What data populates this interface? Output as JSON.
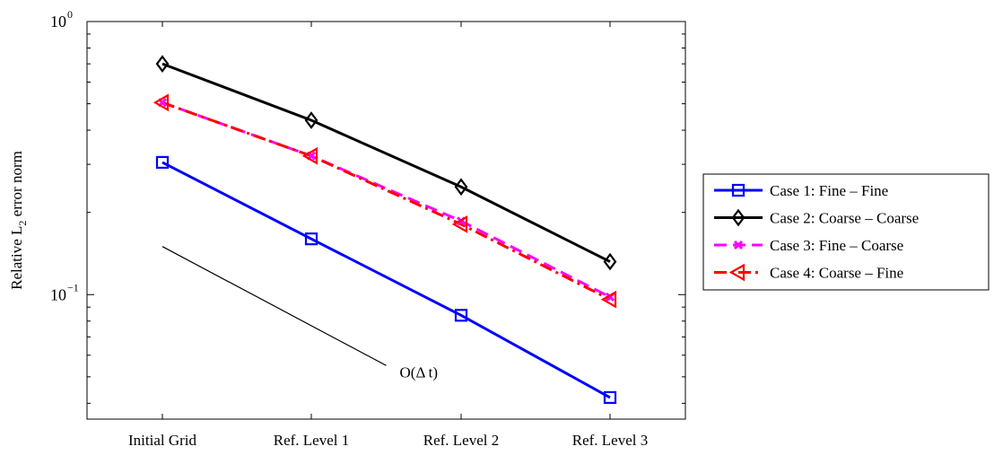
{
  "chart_data": {
    "type": "line",
    "categories": [
      "Initial Grid",
      "Ref. Level 1",
      "Ref. Level 2",
      "Ref. Level 3"
    ],
    "ylabel": "Relative L",
    "ylabel_subscript": "2",
    "ylabel_suffix": "error norm",
    "yscale": "log",
    "ylim": [
      0.035,
      1
    ],
    "yticks": [
      {
        "value": 0.1,
        "base": "10",
        "exp": "−1"
      },
      {
        "value": 1,
        "base": "10",
        "exp": "0"
      }
    ],
    "grid": false,
    "legend_position": "outside-right",
    "series": [
      {
        "name": "Case 1: Fine – Fine",
        "values": [
          0.305,
          0.16,
          0.084,
          0.042
        ],
        "color": "#0000ff",
        "dash": "solid",
        "marker": "square"
      },
      {
        "name": "Case 2: Coarse – Coarse",
        "values": [
          0.7,
          0.435,
          0.248,
          0.132
        ],
        "color": "#000000",
        "dash": "solid",
        "marker": "diamond"
      },
      {
        "name": "Case 3: Fine – Coarse",
        "values": [
          0.505,
          0.322,
          0.186,
          0.098
        ],
        "color": "#ff00ff",
        "dash": "dashed",
        "marker": "x"
      },
      {
        "name": "Case 4: Coarse – Fine",
        "values": [
          0.505,
          0.322,
          0.181,
          0.096
        ],
        "color": "#ff0000",
        "dash": "dashdot",
        "marker": "triangle-left"
      }
    ],
    "reference_line": {
      "label": "O(Δ t)",
      "from": {
        "x": 0,
        "y": 0.15
      },
      "to": {
        "x": 1.5,
        "y": 0.055
      },
      "color": "#000000"
    }
  }
}
